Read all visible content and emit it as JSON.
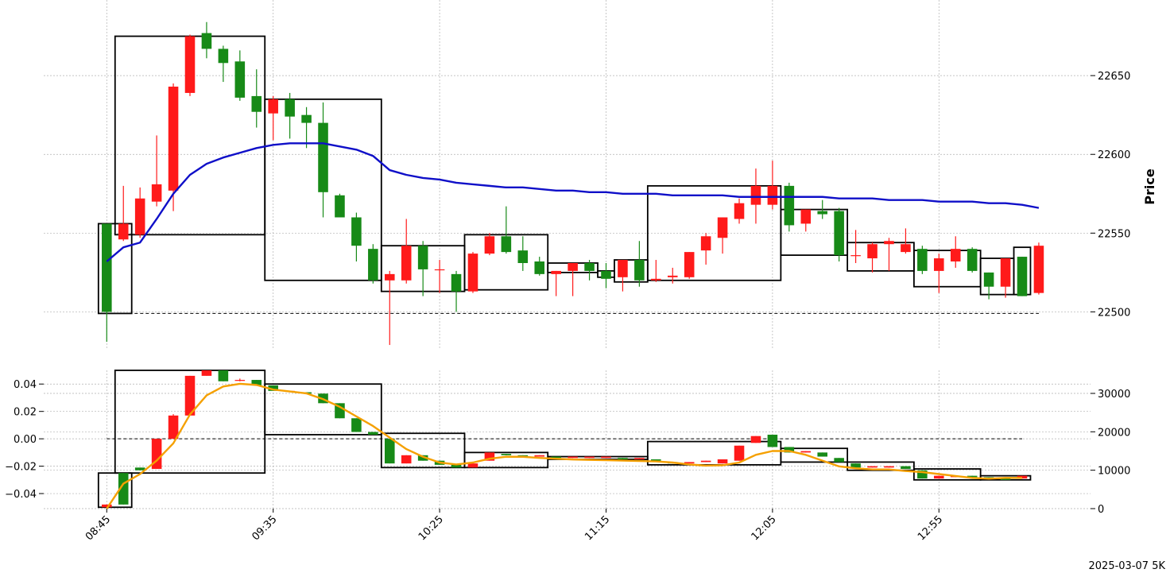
{
  "chart_data": {
    "type": "candlestick",
    "ylabel": "Price",
    "footer_label": "2025-03-07 5K",
    "x_tick_labels": [
      {
        "index": 0,
        "label": "08:45"
      },
      {
        "index": 10,
        "label": "09:35"
      },
      {
        "index": 20,
        "label": "10:25"
      },
      {
        "index": 30,
        "label": "11:15"
      },
      {
        "index": 40,
        "label": "12:05"
      },
      {
        "index": 50,
        "label": "12:55"
      }
    ],
    "price_panel": {
      "ylim": [
        22476,
        22698
      ],
      "yticks": [
        22500,
        22550,
        22600,
        22650
      ],
      "dashed_level": 22499,
      "candles": [
        [
          22556,
          22556,
          22481,
          22500
        ],
        [
          22546,
          22580,
          22545,
          22556
        ],
        [
          22549,
          22579,
          22547,
          22572
        ],
        [
          22570,
          22612,
          22567,
          22581
        ],
        [
          22577,
          22645,
          22564,
          22643
        ],
        [
          22639,
          22676,
          22637,
          22675
        ],
        [
          22677,
          22684,
          22661,
          22667
        ],
        [
          22667,
          22669,
          22646,
          22658
        ],
        [
          22659,
          22666,
          22634,
          22636
        ],
        [
          22637,
          22654,
          22617,
          22627
        ],
        [
          22626,
          22637,
          22609,
          22635
        ],
        [
          22635,
          22639,
          22610,
          22624
        ],
        [
          22625,
          22630,
          22604,
          22620
        ],
        [
          22620,
          22633,
          22560,
          22576
        ],
        [
          22574,
          22575,
          22560,
          22560
        ],
        [
          22560,
          22563,
          22532,
          22542
        ],
        [
          22540,
          22543,
          22518,
          22520
        ],
        [
          22520,
          22526,
          22479,
          22524
        ],
        [
          22520,
          22559,
          22518,
          22542
        ],
        [
          22542,
          22545,
          22510,
          22527
        ],
        [
          22527,
          22533,
          22512,
          22527
        ],
        [
          22524,
          22526,
          22500,
          22513
        ],
        [
          22513,
          22538,
          22512,
          22537
        ],
        [
          22537,
          22550,
          22536,
          22548
        ],
        [
          22548,
          22567,
          22537,
          22538
        ],
        [
          22539,
          22548,
          22526,
          22531
        ],
        [
          22532,
          22535,
          22523,
          22524
        ],
        [
          22524,
          22526,
          22510,
          22526
        ],
        [
          22526,
          22531,
          22510,
          22531
        ],
        [
          22531,
          22533,
          22520,
          22526
        ],
        [
          22526,
          22531,
          22515,
          22521
        ],
        [
          22522,
          22532,
          22513,
          22533
        ],
        [
          22533,
          22545,
          22516,
          22520
        ],
        [
          22520,
          22533,
          22519,
          22521
        ],
        [
          22522,
          22528,
          22518,
          22523
        ],
        [
          22522,
          22538,
          22521,
          22538
        ],
        [
          22539,
          22550,
          22530,
          22548
        ],
        [
          22547,
          22560,
          22537,
          22560
        ],
        [
          22559,
          22572,
          22556,
          22569
        ],
        [
          22568,
          22591,
          22556,
          22580
        ],
        [
          22568,
          22596,
          22565,
          22580
        ],
        [
          22580,
          22582,
          22551,
          22555
        ],
        [
          22556,
          22565,
          22551,
          22565
        ],
        [
          22564,
          22571,
          22559,
          22562
        ],
        [
          22564,
          22566,
          22532,
          22536
        ],
        [
          22536,
          22552,
          22531,
          22536
        ],
        [
          22534,
          22544,
          22525,
          22543
        ],
        [
          22543,
          22547,
          22526,
          22545
        ],
        [
          22538,
          22553,
          22537,
          22543
        ],
        [
          22540,
          22542,
          22524,
          22526
        ],
        [
          22526,
          22537,
          22512,
          22534
        ],
        [
          22532,
          22548,
          22528,
          22540
        ],
        [
          22540,
          22541,
          22525,
          22526
        ],
        [
          22525,
          22525,
          22508,
          22516
        ],
        [
          22516,
          22534,
          22509,
          22534
        ],
        [
          22535,
          22535,
          22510,
          22510
        ],
        [
          22512,
          22544,
          22511,
          22542
        ]
      ],
      "ma_line": [
        22532,
        22541,
        22544,
        22559,
        22575,
        22587,
        22594,
        22598,
        22601,
        22604,
        22606,
        22607,
        22607,
        22607,
        22605,
        22603,
        22599,
        22590,
        22587,
        22585,
        22584,
        22582,
        22581,
        22580,
        22579,
        22579,
        22578,
        22577,
        22577,
        22576,
        22576,
        22575,
        22575,
        22575,
        22574,
        22574,
        22574,
        22574,
        22573,
        22573,
        22573,
        22573,
        22573,
        22573,
        22572,
        22572,
        22572,
        22571,
        22571,
        22571,
        22570,
        22570,
        22570,
        22569,
        22569,
        22568,
        22566
      ],
      "ma_color": "#0f0fc8",
      "boxes": [
        {
          "start": 0,
          "end": 1,
          "low": 22499,
          "high": 22556
        },
        {
          "start": 1,
          "end": 9,
          "low": 22549,
          "high": 22675
        },
        {
          "start": 10,
          "end": 16,
          "low": 22520,
          "high": 22635
        },
        {
          "start": 17,
          "end": 21,
          "low": 22513,
          "high": 22542
        },
        {
          "start": 22,
          "end": 26,
          "low": 22514,
          "high": 22549
        },
        {
          "start": 27,
          "end": 29,
          "low": 22525,
          "high": 22531
        },
        {
          "start": 30,
          "end": 30,
          "low": 22522,
          "high": 22526
        },
        {
          "start": 31,
          "end": 32,
          "low": 22519,
          "high": 22533
        },
        {
          "start": 33,
          "end": 40,
          "low": 22520,
          "high": 22580
        },
        {
          "start": 41,
          "end": 44,
          "low": 22536,
          "high": 22565
        },
        {
          "start": 45,
          "end": 48,
          "low": 22526,
          "high": 22544
        },
        {
          "start": 49,
          "end": 52,
          "low": 22516,
          "high": 22539
        },
        {
          "start": 53,
          "end": 54,
          "low": 22511,
          "high": 22534
        },
        {
          "start": 55,
          "end": 55,
          "low": 22511,
          "high": 22541
        }
      ]
    },
    "indicator_panel": {
      "left_ylim": [
        -0.051,
        0.05
      ],
      "left_yticks": [
        -0.04,
        -0.02,
        0.0,
        0.02,
        0.04
      ],
      "left_tick_labels": [
        "−0.04",
        "−0.02",
        "0.00",
        "0.02",
        "0.04"
      ],
      "right_ylim": [
        0,
        36000
      ],
      "right_yticks": [
        0,
        10000,
        20000,
        30000
      ],
      "dashed_level": 0.0,
      "candles": [
        [
          -0.05,
          -0.048,
          -0.05,
          -0.048
        ],
        [
          -0.025,
          -0.025,
          -0.048,
          -0.048
        ],
        [
          -0.021,
          -0.021,
          -0.023,
          -0.023
        ],
        [
          -0.022,
          0.0,
          -0.022,
          0.0
        ],
        [
          0.0,
          0.018,
          0.0,
          0.017
        ],
        [
          0.017,
          0.046,
          0.017,
          0.046
        ],
        [
          0.046,
          0.05,
          0.046,
          0.05
        ],
        [
          0.05,
          0.05,
          0.042,
          0.042
        ],
        [
          0.043,
          0.044,
          0.042,
          0.043
        ],
        [
          0.043,
          0.043,
          0.039,
          0.039
        ],
        [
          0.039,
          0.039,
          0.035,
          0.035
        ],
        [
          0.035,
          0.035,
          0.034,
          0.035
        ],
        [
          0.034,
          0.034,
          0.033,
          0.033
        ],
        [
          0.033,
          0.033,
          0.026,
          0.026
        ],
        [
          0.026,
          0.026,
          0.015,
          0.015
        ],
        [
          0.015,
          0.015,
          0.005,
          0.005
        ],
        [
          0.005,
          0.005,
          0.003,
          0.003
        ],
        [
          0.0,
          0.0,
          -0.018,
          -0.018
        ],
        [
          -0.018,
          -0.012,
          -0.018,
          -0.012
        ],
        [
          -0.012,
          -0.012,
          -0.016,
          -0.016
        ],
        [
          -0.016,
          -0.016,
          -0.019,
          -0.019
        ],
        [
          -0.019,
          -0.019,
          -0.021,
          -0.021
        ],
        [
          -0.021,
          -0.018,
          -0.021,
          -0.018
        ],
        [
          -0.016,
          -0.01,
          -0.016,
          -0.01
        ],
        [
          -0.011,
          -0.011,
          -0.012,
          -0.012
        ],
        [
          -0.012,
          -0.012,
          -0.013,
          -0.013
        ],
        [
          -0.013,
          -0.012,
          -0.013,
          -0.012
        ],
        [
          -0.013,
          -0.013,
          -0.014,
          -0.014
        ],
        [
          -0.014,
          -0.013,
          -0.014,
          -0.013
        ],
        [
          -0.014,
          -0.013,
          -0.014,
          -0.013
        ],
        [
          -0.014,
          -0.013,
          -0.014,
          -0.013
        ],
        [
          -0.014,
          -0.014,
          -0.015,
          -0.015
        ],
        [
          -0.015,
          -0.014,
          -0.015,
          -0.014
        ],
        [
          -0.015,
          -0.015,
          -0.016,
          -0.016
        ],
        [
          -0.017,
          -0.017,
          -0.018,
          -0.018
        ],
        [
          -0.018,
          -0.017,
          -0.018,
          -0.017
        ],
        [
          -0.017,
          -0.016,
          -0.017,
          -0.016
        ],
        [
          -0.018,
          -0.015,
          -0.018,
          -0.015
        ],
        [
          -0.016,
          -0.005,
          -0.016,
          -0.005
        ],
        [
          -0.003,
          0.002,
          -0.003,
          0.002
        ],
        [
          0.003,
          0.003,
          -0.006,
          -0.006
        ],
        [
          -0.006,
          -0.006,
          -0.01,
          -0.01
        ],
        [
          -0.01,
          -0.009,
          -0.01,
          -0.009
        ],
        [
          -0.01,
          -0.01,
          -0.013,
          -0.013
        ],
        [
          -0.014,
          -0.014,
          -0.017,
          -0.017
        ],
        [
          -0.018,
          -0.018,
          -0.021,
          -0.021
        ],
        [
          -0.021,
          -0.02,
          -0.021,
          -0.02
        ],
        [
          -0.021,
          -0.02,
          -0.021,
          -0.02
        ],
        [
          -0.02,
          -0.02,
          -0.022,
          -0.022
        ],
        [
          -0.023,
          -0.023,
          -0.029,
          -0.029
        ],
        [
          -0.029,
          -0.027,
          -0.029,
          -0.027
        ],
        [
          -0.028,
          -0.027,
          -0.028,
          -0.027
        ],
        [
          -0.027,
          -0.027,
          -0.028,
          -0.028
        ],
        [
          -0.028,
          -0.028,
          -0.029,
          -0.029
        ],
        [
          -0.029,
          -0.029,
          -0.03,
          -0.03
        ],
        [
          -0.029,
          -0.027,
          -0.029,
          -0.027
        ]
      ],
      "line": [
        0,
        6500,
        9000,
        12500,
        17000,
        24500,
        29500,
        31800,
        32500,
        32200,
        31000,
        30500,
        30000,
        28500,
        26500,
        24000,
        21500,
        18500,
        15500,
        13500,
        12000,
        11500,
        12000,
        13000,
        13500,
        13500,
        13200,
        13000,
        12800,
        12700,
        12600,
        12500,
        12400,
        12300,
        12000,
        11500,
        11200,
        11300,
        12000,
        14000,
        15000,
        15000,
        14000,
        12500,
        11000,
        10500,
        10200,
        10200,
        9800,
        9500,
        9000,
        8500,
        8000,
        7800,
        8000,
        8000
      ],
      "line_color": "#f5a000",
      "boxes": [
        {
          "start": 0,
          "end": 1,
          "low": -0.05,
          "high": -0.025
        },
        {
          "start": 1,
          "end": 9,
          "low": -0.025,
          "high": 0.05
        },
        {
          "start": 10,
          "end": 16,
          "low": 0.003,
          "high": 0.04
        },
        {
          "start": 17,
          "end": 21,
          "low": -0.021,
          "high": 0.004
        },
        {
          "start": 22,
          "end": 26,
          "low": -0.021,
          "high": -0.01
        },
        {
          "start": 27,
          "end": 32,
          "low": -0.015,
          "high": -0.013
        },
        {
          "start": 33,
          "end": 40,
          "low": -0.019,
          "high": -0.002
        },
        {
          "start": 41,
          "end": 44,
          "low": -0.017,
          "high": -0.007
        },
        {
          "start": 45,
          "end": 48,
          "low": -0.023,
          "high": -0.017
        },
        {
          "start": 49,
          "end": 52,
          "low": -0.03,
          "high": -0.022
        },
        {
          "start": 53,
          "end": 55,
          "low": -0.03,
          "high": -0.027
        }
      ]
    },
    "colors": {
      "up": "#ff1a1a",
      "down": "#178a17",
      "grid": "#b0b0b0",
      "box": "#000000"
    }
  }
}
